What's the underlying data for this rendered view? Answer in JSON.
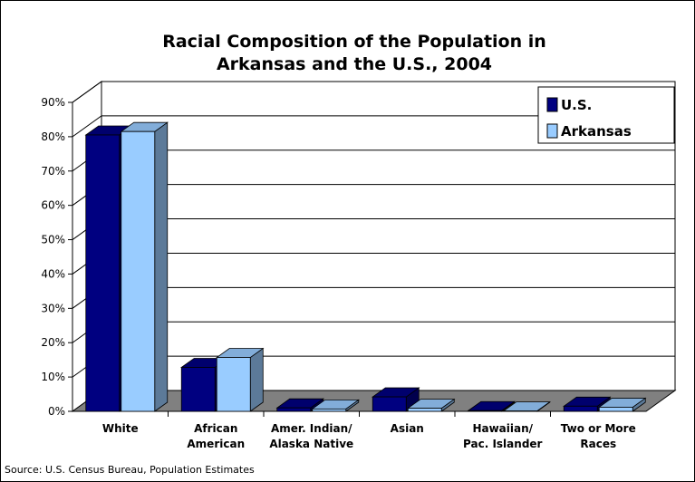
{
  "chart_data": {
    "type": "bar",
    "title_lines": [
      "Racial Composition of the Population in",
      "Arkansas and the U.S., 2004"
    ],
    "categories": [
      [
        "White"
      ],
      [
        "African",
        "American"
      ],
      [
        "Amer. Indian/",
        "Alaska Native"
      ],
      [
        "Asian"
      ],
      [
        "Hawaiian/",
        "Pac. Islander"
      ],
      [
        "Two or More",
        "Races"
      ]
    ],
    "series": [
      {
        "name": "U.S.",
        "values": [
          80.5,
          12.8,
          1.0,
          4.2,
          0.2,
          1.5
        ],
        "color": "#000080"
      },
      {
        "name": "Arkansas",
        "values": [
          81.5,
          15.7,
          0.7,
          0.9,
          0.1,
          1.2
        ],
        "color": "#99ccff"
      }
    ],
    "y_ticks": [
      "0%",
      "10%",
      "20%",
      "30%",
      "40%",
      "50%",
      "60%",
      "70%",
      "80%",
      "90%"
    ],
    "ylim": [
      0,
      90
    ],
    "legend_position": "top-right",
    "grid": true,
    "source": "Source: U.S. Census Bureau, Population Estimates"
  }
}
